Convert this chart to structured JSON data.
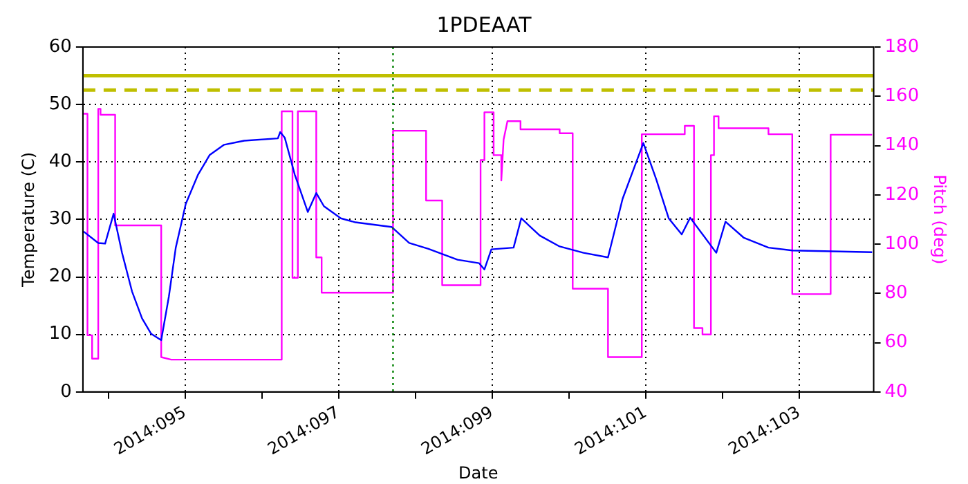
{
  "chart_data": {
    "type": "line",
    "title": "1PDEAAT",
    "xlabel": "Date",
    "ylabel": "Temperature (C)",
    "y2label": "Pitch (deg)",
    "xlim": [
      "2014-04-03T16:05",
      "2014-04-13T23:17"
    ],
    "xticks": [
      {
        "value": "2014-04-04",
        "label": null
      },
      {
        "value": "2014-04-05",
        "label": "2014:095"
      },
      {
        "value": "2014-04-06",
        "label": null
      },
      {
        "value": "2014-04-07",
        "label": "2014:097"
      },
      {
        "value": "2014-04-08",
        "label": null
      },
      {
        "value": "2014-04-09",
        "label": "2014:099"
      },
      {
        "value": "2014-04-10",
        "label": null
      },
      {
        "value": "2014-04-11",
        "label": "2014:101"
      },
      {
        "value": "2014-04-12",
        "label": null
      },
      {
        "value": "2014-04-13",
        "label": "2014:103"
      }
    ],
    "ylim": [
      0,
      60
    ],
    "yticks": [
      0,
      10,
      20,
      30,
      40,
      50,
      60
    ],
    "y2lim": [
      40,
      180
    ],
    "y2ticks": [
      40,
      60,
      80,
      100,
      120,
      140,
      160,
      180
    ],
    "grid": true,
    "legend": false,
    "marker": "none",
    "line_style": "solid",
    "series": [
      {
        "color": "#0000ff",
        "axis": "y",
        "x": [
          "2014-04-03T16:19",
          "2014-04-03T20:53",
          "2014-04-03T23:02",
          "2014-04-04T01:41",
          "2014-04-04T04:19",
          "2014-04-04T07:26",
          "2014-04-04T10:34",
          "2014-04-04T13:26",
          "2014-04-04T16:34",
          "2014-04-04T18:58",
          "2014-04-04T21:07",
          "2014-04-05T00:14",
          "2014-04-05T04:05",
          "2014-04-05T07:41",
          "2014-04-05T12:14",
          "2014-04-05T18:29",
          "2014-04-06T05:02",
          "2014-04-06T05:46",
          "2014-04-06T07:12",
          "2014-04-06T10:19",
          "2014-04-06T14:24",
          "2014-04-06T17:02",
          "2014-04-06T19:26",
          "2014-04-07T00:43",
          "2014-04-07T05:17",
          "2014-04-07T16:34",
          "2014-04-07T22:05",
          "2014-04-08T04:05",
          "2014-04-08T13:12",
          "2014-04-08T19:55",
          "2014-04-08T21:36",
          "2014-04-08T23:46",
          "2014-04-09T06:43",
          "2014-04-09T09:07",
          "2014-04-09T14:53",
          "2014-04-09T21:07",
          "2014-04-10T04:34",
          "2014-04-10T12:14",
          "2014-04-10T16:48",
          "2014-04-10T23:17",
          "2014-04-11T03:22",
          "2014-04-11T07:12",
          "2014-04-11T11:17",
          "2014-04-11T13:55",
          "2014-04-11T22:05",
          "2014-04-12T00:58",
          "2014-04-12T06:43",
          "2014-04-12T14:24",
          "2014-04-12T21:50",
          "2014-04-13T22:48"
        ],
        "values": [
          27.9,
          25.9,
          25.8,
          31.0,
          24.2,
          17.5,
          12.8,
          10.1,
          9.0,
          16.6,
          25.1,
          32.7,
          37.8,
          41.2,
          43.0,
          43.7,
          44.1,
          45.2,
          44.2,
          37.8,
          31.3,
          34.6,
          32.3,
          30.2,
          29.5,
          28.7,
          25.9,
          24.9,
          23.0,
          22.4,
          21.3,
          24.8,
          25.1,
          30.2,
          27.2,
          25.3,
          24.2,
          23.4,
          33.6,
          43.3,
          36.9,
          30.2,
          27.4,
          30.3,
          24.2,
          29.6,
          26.8,
          25.1,
          24.6,
          24.3
        ]
      },
      {
        "color": "#ff00ff",
        "axis": "y2",
        "x": [
          "2014-04-03T16:19",
          "2014-04-03T17:31",
          "2014-04-03T17:31",
          "2014-04-03T18:58",
          "2014-04-03T18:58",
          "2014-04-03T20:53",
          "2014-04-03T20:53",
          "2014-04-03T21:36",
          "2014-04-03T21:36",
          "2014-04-04T02:10",
          "2014-04-04T02:10",
          "2014-04-04T16:34",
          "2014-04-04T16:34",
          "2014-04-04T19:41",
          "2014-04-06T06:14",
          "2014-04-06T06:14",
          "2014-04-06T09:36",
          "2014-04-06T09:36",
          "2014-04-06T11:17",
          "2014-04-06T11:17",
          "2014-04-06T17:02",
          "2014-04-06T17:02",
          "2014-04-06T18:43",
          "2014-04-06T18:43",
          "2014-04-07T17:02",
          "2014-04-07T17:02",
          "2014-04-08T03:22",
          "2014-04-08T03:22",
          "2014-04-08T08:24",
          "2014-04-08T08:24",
          "2014-04-08T20:24",
          "2014-04-08T20:24",
          "2014-04-08T21:36",
          "2014-04-08T21:36",
          "2014-04-09T00:29",
          "2014-04-09T00:29",
          "2014-04-09T02:53",
          "2014-04-09T02:53",
          "2014-04-09T03:36",
          "2014-04-09T04:48",
          "2014-04-09T08:53",
          "2014-04-09T08:53",
          "2014-04-09T21:07",
          "2014-04-09T21:07",
          "2014-04-10T01:12",
          "2014-04-10T01:12",
          "2014-04-10T12:14",
          "2014-04-10T12:14",
          "2014-04-10T22:48",
          "2014-04-10T22:48",
          "2014-04-11T12:14",
          "2014-04-11T12:14",
          "2014-04-11T15:07",
          "2014-04-11T15:07",
          "2014-04-11T17:46",
          "2014-04-11T17:46",
          "2014-04-11T20:24",
          "2014-04-11T20:24",
          "2014-04-11T21:22",
          "2014-04-11T21:22",
          "2014-04-11T22:48",
          "2014-04-11T22:48",
          "2014-04-12T14:24",
          "2014-04-12T14:24",
          "2014-04-12T21:50",
          "2014-04-12T21:50",
          "2014-04-13T09:50",
          "2014-04-13T09:50",
          "2014-04-13T22:48"
        ],
        "values": [
          152.9,
          152.9,
          63.0,
          63.0,
          53.5,
          53.5,
          154.9,
          154.9,
          152.5,
          152.5,
          107.6,
          107.6,
          54.1,
          53.1,
          53.1,
          153.9,
          153.9,
          86.3,
          86.3,
          153.9,
          153.9,
          94.6,
          94.6,
          80.3,
          80.3,
          146.0,
          146.0,
          117.7,
          117.7,
          83.3,
          83.3,
          134.1,
          134.1,
          153.5,
          153.5,
          136.1,
          136.1,
          125.8,
          142.4,
          149.9,
          149.9,
          146.6,
          146.6,
          145.0,
          145.0,
          81.9,
          81.9,
          54.1,
          54.1,
          144.6,
          144.6,
          148.0,
          148.0,
          65.9,
          65.9,
          63.3,
          63.3,
          136.1,
          136.1,
          151.9,
          151.9,
          147.0,
          147.0,
          144.6,
          144.6,
          79.7,
          79.7,
          144.4,
          144.4
        ]
      }
    ],
    "ref_lines": [
      {
        "axis": "y",
        "value": 55,
        "color": "#bfbf00",
        "line_style": "solid"
      },
      {
        "axis": "y",
        "value": 52.5,
        "color": "#bfbf00",
        "line_style": "dashed"
      },
      {
        "axis": "x",
        "value": "2014-04-07T17:02",
        "color": "#008000",
        "line_style": "dotted"
      }
    ]
  }
}
